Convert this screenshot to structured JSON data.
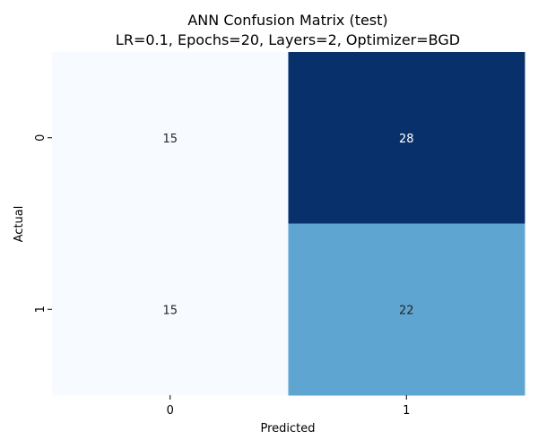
{
  "chart_data": {
    "type": "heatmap",
    "title_line1": "ANN Confusion Matrix (test)",
    "title_line2": "LR=0.1, Epochs=20, Layers=2, Optimizer=BGD",
    "xlabel": "Predicted",
    "ylabel": "Actual",
    "x_categories": [
      "0",
      "1"
    ],
    "y_categories": [
      "0",
      "1"
    ],
    "values": [
      [
        15,
        28
      ],
      [
        15,
        22
      ]
    ],
    "colormap": "Blues",
    "color_range": [
      15,
      28
    ],
    "colorbar": false
  }
}
